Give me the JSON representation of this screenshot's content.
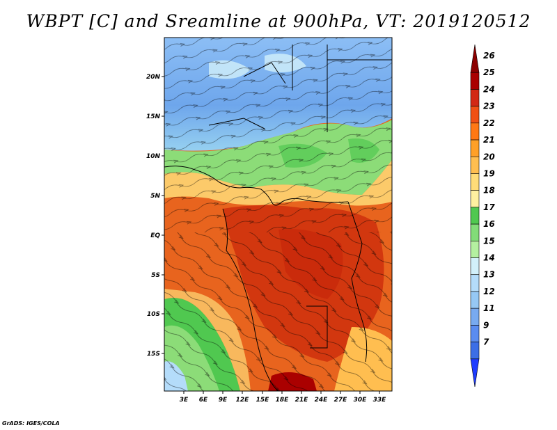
{
  "title": "WBPT [C] and Sreamline at 900hPa, VT: 2019120512",
  "credit": "GrADS: IGES/COLA",
  "map": {
    "lon_labels": [
      "3E",
      "6E",
      "9E",
      "12E",
      "15E",
      "18E",
      "21E",
      "24E",
      "27E",
      "30E",
      "33E"
    ],
    "lat_labels": [
      "20N",
      "15N",
      "10N",
      "5N",
      "EQ",
      "5S",
      "10S",
      "15S"
    ]
  },
  "colorbar": {
    "levels": [
      "7",
      "9",
      "11",
      "12",
      "13",
      "14",
      "15",
      "16",
      "17",
      "18",
      "19",
      "20",
      "21",
      "22",
      "23",
      "24",
      "25",
      "26"
    ],
    "colors": [
      "#1e3cff",
      "#3c6ee6",
      "#5a8cf0",
      "#78aaf0",
      "#96c8f5",
      "#b4dcfa",
      "#d2f0fa",
      "#b4f0a0",
      "#82dc78",
      "#50c850",
      "#fff0a0",
      "#ffdc78",
      "#ffbe50",
      "#ffa028",
      "#ff7814",
      "#f05014",
      "#d22814",
      "#aa0000",
      "#8c0000"
    ]
  },
  "field_colors": {
    "ocean_warm": "#e8641e",
    "land_hot": "#d2370f",
    "cool_green": "#8cdc78",
    "blue": "#78aaf0"
  }
}
